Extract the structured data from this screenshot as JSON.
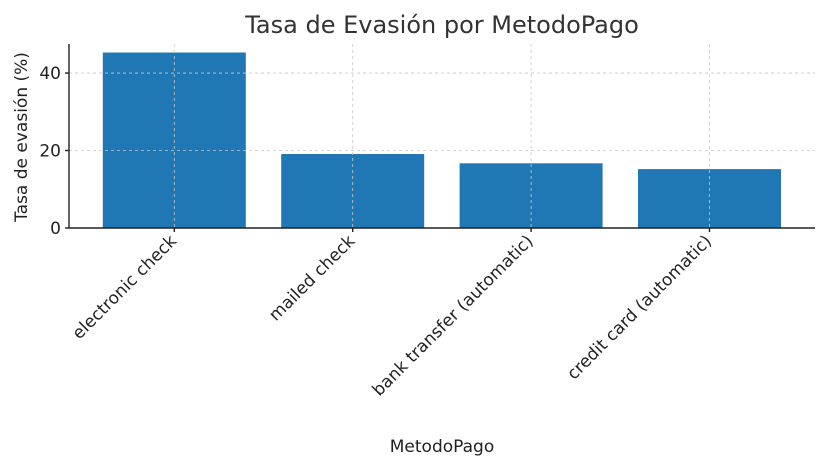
{
  "chart_data": {
    "type": "bar",
    "title": "Tasa de Evasión por MetodoPago",
    "xlabel": "MetodoPago",
    "ylabel": "Tasa de evasión (%)",
    "categories": [
      "electronic check",
      "mailed check",
      "bank transfer (automatic)",
      "credit card (automatic)"
    ],
    "values": [
      45.3,
      19.1,
      16.7,
      15.2
    ],
    "ylim": [
      0,
      47.5
    ],
    "yticks": [
      0,
      20,
      40
    ],
    "grid": true,
    "color": "#1f77b4"
  }
}
